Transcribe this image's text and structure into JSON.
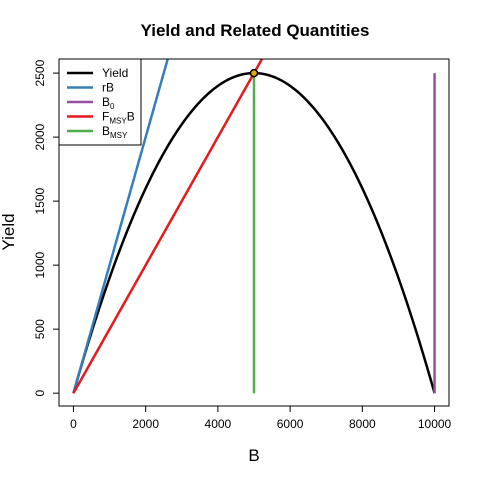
{
  "chart_data": {
    "type": "line",
    "title": "Yield and Related Quantities",
    "xlabel": "B",
    "ylabel": "Yield",
    "xlim": [
      -400,
      10400
    ],
    "ylim": [
      -100,
      2610
    ],
    "x_ticks": [
      0,
      2000,
      4000,
      6000,
      8000,
      10000
    ],
    "y_ticks": [
      0,
      500,
      1000,
      1500,
      2000,
      2500
    ],
    "legend_position": "top-left",
    "grid": false,
    "parameters": {
      "r": 1.0,
      "K": 10000,
      "B_MSY": 5000,
      "MSY": 2500,
      "F_MSY": 0.5
    },
    "series": [
      {
        "name": "Yield",
        "type": "parabola",
        "color": "#000000",
        "x_range": [
          0,
          10000
        ]
      },
      {
        "name": "rB",
        "type": "line",
        "color": "#377EB8",
        "points": [
          [
            0,
            0
          ],
          [
            2610,
            2610
          ]
        ]
      },
      {
        "name": "B0",
        "type": "vline",
        "color": "#984EA3",
        "x": 10000,
        "y_range": [
          0,
          2500
        ]
      },
      {
        "name": "FMSYB",
        "type": "line",
        "color": "#E41A1C",
        "points": [
          [
            0,
            0
          ],
          [
            5220,
            2610
          ]
        ]
      },
      {
        "name": "BMSY",
        "type": "vline",
        "color": "#4DAF4A",
        "x": 5000,
        "y_range": [
          0,
          2500
        ]
      }
    ],
    "msy_point": {
      "x": 5000,
      "y": 2500,
      "color": "#000000",
      "fill": "#E6A800"
    },
    "legend": [
      {
        "base": "Yield",
        "sub": "",
        "tail": "",
        "color": "#000000"
      },
      {
        "base": "rB",
        "sub": "",
        "tail": "",
        "color": "#377EB8"
      },
      {
        "base": "B",
        "sub": "0",
        "tail": "",
        "color": "#984EA3"
      },
      {
        "base": "F",
        "sub": "MSY",
        "tail": "B",
        "color": "#E41A1C"
      },
      {
        "base": "B",
        "sub": "MSY",
        "tail": "",
        "color": "#4DAF4A"
      }
    ]
  }
}
